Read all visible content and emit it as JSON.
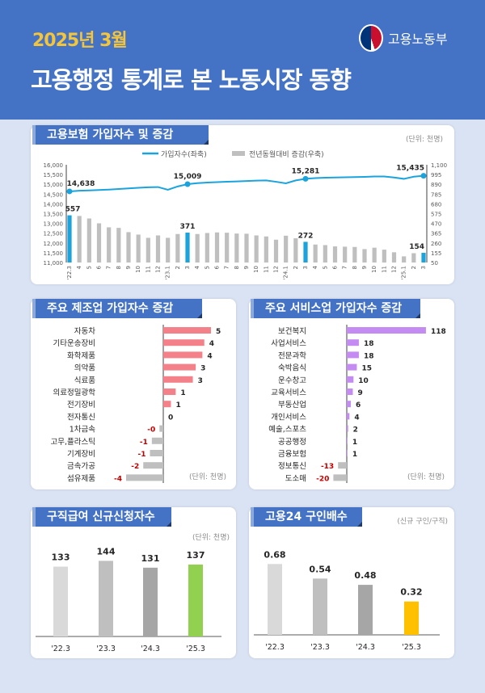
{
  "header": {
    "date": "2025년 3월",
    "title": "고용행정 통계로 본 노동시장 동향",
    "ministry": "고용노동부"
  },
  "colors": {
    "header": "#4472c4",
    "background": "#dae3f3",
    "line": "#1aa3dc",
    "bar_grey": "#bfbfbf",
    "manufacturing_pos": "#f4818a",
    "service_pos": "#c48cf2",
    "negative": "#bfbfbf",
    "negative_label": "#c00000"
  },
  "chart_data": [
    {
      "type": "line+bar",
      "title": "고용보험 가입자수 및 증감",
      "unit": "(단위: 천명)",
      "legend": [
        "가입자수(좌축)",
        "전년동월대비 증감(우축)"
      ],
      "legend_position": "top",
      "x": [
        "'22.3",
        "4",
        "5",
        "6",
        "7",
        "8",
        "9",
        "10",
        "11",
        "12",
        "'23.1",
        "2",
        "3",
        "4",
        "5",
        "6",
        "7",
        "8",
        "9",
        "10",
        "11",
        "12",
        "'24.1",
        "2",
        "3",
        "4",
        "5",
        "6",
        "7",
        "8",
        "9",
        "10",
        "11",
        "12",
        "'25.1",
        "2",
        "3"
      ],
      "y_left": {
        "range": [
          11000,
          16000
        ],
        "ticks": [
          "11,000",
          "11,500",
          "12,000",
          "12,500",
          "13,000",
          "13,500",
          "14,000",
          "14,500",
          "15,000",
          "15,500",
          "16,000"
        ]
      },
      "y_right": {
        "range": [
          50,
          1100
        ],
        "ticks": [
          "50",
          "155",
          "260",
          "365",
          "470",
          "575",
          "680",
          "785",
          "890",
          "995",
          "1,100"
        ]
      },
      "line_values": [
        14638,
        14670,
        14690,
        14710,
        14730,
        14760,
        14790,
        14820,
        14850,
        14860,
        14720,
        14890,
        15009,
        15060,
        15090,
        15110,
        15130,
        15150,
        15170,
        15190,
        15200,
        15130,
        15050,
        15200,
        15281,
        15320,
        15340,
        15350,
        15360,
        15370,
        15380,
        15400,
        15400,
        15350,
        15280,
        15390,
        15435
      ],
      "bar_values": [
        557,
        550,
        523,
        471,
        428,
        422,
        376,
        350,
        315,
        341,
        315,
        356,
        371,
        356,
        367,
        373,
        370,
        361,
        359,
        341,
        330,
        295,
        338,
        310,
        272,
        243,
        237,
        223,
        220,
        217,
        194,
        209,
        188,
        160,
        116,
        150,
        154
      ],
      "highlight_indices": [
        0,
        12,
        24,
        36
      ],
      "line_labels": [
        "14,638",
        "15,009",
        "15,281",
        "15,435"
      ],
      "bar_labels": [
        "557",
        "371",
        "272",
        "154"
      ]
    },
    {
      "type": "hbar",
      "title": "주요 제조업 가입자수 증감",
      "unit": "(단위: 천명)",
      "categories": [
        "자동차",
        "기타운송장비",
        "화학제품",
        "의약품",
        "식료품",
        "의료정밀광학",
        "전기장비",
        "전자통신",
        "1차금속",
        "고무,플라스틱",
        "기계장비",
        "금속가공",
        "섬유제품"
      ],
      "values": [
        5.0,
        4.3,
        4.1,
        3.4,
        3.1,
        1.3,
        0.8,
        0,
        -0.4,
        -1.2,
        -1.4,
        -2.1,
        -3.9
      ],
      "labels": [
        "5",
        "4",
        "4",
        "3",
        "3",
        "1",
        "1",
        "0",
        "-0",
        "-1",
        "-1",
        "-2",
        "-4"
      ]
    },
    {
      "type": "hbar",
      "title": "주요 서비스업 가입자수 증감",
      "unit": "(단위: 천명)",
      "categories": [
        "보건복지",
        "사업서비스",
        "전문과학",
        "숙박음식",
        "운수창고",
        "교육서비스",
        "부동산업",
        "개인서비스",
        "예술,스포츠",
        "공공행정",
        "금융보험",
        "정보통신",
        "도소매"
      ],
      "values": [
        118,
        18,
        18,
        15,
        10,
        9,
        6,
        4,
        2,
        1,
        1,
        -13,
        -20
      ],
      "labels": [
        "118",
        "18",
        "18",
        "15",
        "10",
        "9",
        "6",
        "4",
        "2",
        "1",
        "1",
        "-13",
        "-20"
      ]
    },
    {
      "type": "bar",
      "title": "구직급여 신규신청자수",
      "unit": "(단위: 천명)",
      "categories": [
        "'22.3",
        "'23.3",
        "'24.3",
        "'25.3"
      ],
      "values": [
        133,
        144,
        131,
        137
      ],
      "labels": [
        "133",
        "144",
        "131",
        "137"
      ],
      "colors": [
        "#d9d9d9",
        "#bfbfbf",
        "#a6a6a6",
        "#92d050"
      ]
    },
    {
      "type": "bar",
      "title": "고용24 구인배수",
      "unit": "(신규 구인/구직)",
      "categories": [
        "'22.3",
        "'23.3",
        "'24.3",
        "'25.3"
      ],
      "values": [
        0.68,
        0.54,
        0.48,
        0.32
      ],
      "labels": [
        "0.68",
        "0.54",
        "0.48",
        "0.32"
      ],
      "colors": [
        "#d9d9d9",
        "#bfbfbf",
        "#a6a6a6",
        "#ffc000"
      ]
    }
  ]
}
